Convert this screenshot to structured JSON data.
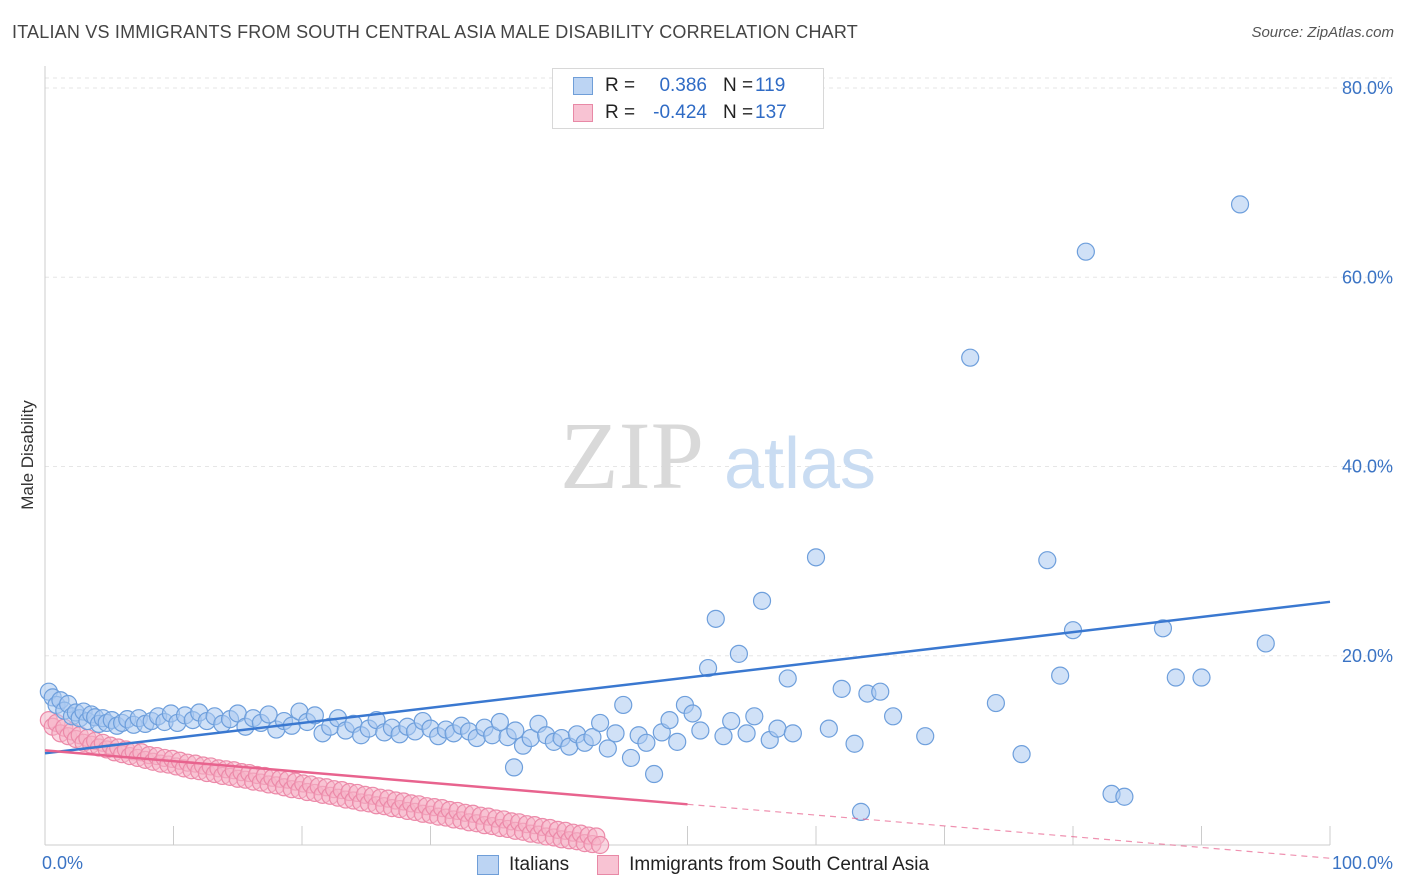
{
  "header": {
    "title": "ITALIAN VS IMMIGRANTS FROM SOUTH CENTRAL ASIA MALE DISABILITY CORRELATION CHART",
    "source": "Source: ZipAtlas.com"
  },
  "watermark": {
    "zip": "ZIP",
    "atlas": "atlas"
  },
  "stats_legend": [
    {
      "r_label": "R =",
      "r_value": "0.386",
      "n_label": "N =",
      "n_value": "119"
    },
    {
      "r_label": "R =",
      "r_value": "-0.424",
      "n_label": "N =",
      "n_value": "137"
    }
  ],
  "colors": {
    "italians_fill": "#a9c8f0",
    "italians_stroke": "#6e9fdc",
    "italians_line": "#3a78d0",
    "immigrants_fill": "#f6b5c8",
    "immigrants_stroke": "#ec8aa9",
    "immigrants_line": "#e8638e",
    "tick_label": "#3a73c4",
    "grid": "#e6e6e6"
  },
  "chart_data": {
    "type": "scatter",
    "title": "ITALIAN VS IMMIGRANTS FROM SOUTH CENTRAL ASIA MALE DISABILITY CORRELATION CHART",
    "xlabel": "",
    "ylabel": "Male Disability",
    "xlim": [
      0,
      100
    ],
    "ylim": [
      0,
      80
    ],
    "x_tick_labels": [
      "0.0%",
      "100.0%"
    ],
    "y_ticks": [
      20,
      40,
      60,
      80
    ],
    "y_tick_labels": [
      "20.0%",
      "40.0%",
      "60.0%",
      "80.0%"
    ],
    "grid": true,
    "legend_position": "bottom-center",
    "series": [
      {
        "name": "Italians",
        "r": 0.386,
        "n": 119,
        "trend": {
          "x": [
            0,
            100
          ],
          "y": [
            9.7,
            25.7
          ]
        },
        "points": [
          [
            0.3,
            16.2
          ],
          [
            0.6,
            15.6
          ],
          [
            0.9,
            14.8
          ],
          [
            1.2,
            15.3
          ],
          [
            1.5,
            14.2
          ],
          [
            1.8,
            14.9
          ],
          [
            2.1,
            13.6
          ],
          [
            2.4,
            14.0
          ],
          [
            2.7,
            13.4
          ],
          [
            3.0,
            14.1
          ],
          [
            3.3,
            13.1
          ],
          [
            3.6,
            13.8
          ],
          [
            3.9,
            13.5
          ],
          [
            4.2,
            12.8
          ],
          [
            4.5,
            13.4
          ],
          [
            4.8,
            12.9
          ],
          [
            5.2,
            13.2
          ],
          [
            5.6,
            12.6
          ],
          [
            6.0,
            12.9
          ],
          [
            6.4,
            13.3
          ],
          [
            6.9,
            12.7
          ],
          [
            7.3,
            13.4
          ],
          [
            7.8,
            12.8
          ],
          [
            8.3,
            13.1
          ],
          [
            8.8,
            13.6
          ],
          [
            9.3,
            13.0
          ],
          [
            9.8,
            13.9
          ],
          [
            10.3,
            12.9
          ],
          [
            10.9,
            13.7
          ],
          [
            11.5,
            13.2
          ],
          [
            12.0,
            14.0
          ],
          [
            12.6,
            13.1
          ],
          [
            13.2,
            13.6
          ],
          [
            13.8,
            12.8
          ],
          [
            14.4,
            13.3
          ],
          [
            15.0,
            13.9
          ],
          [
            15.6,
            12.5
          ],
          [
            16.2,
            13.4
          ],
          [
            16.8,
            12.9
          ],
          [
            17.4,
            13.8
          ],
          [
            18.0,
            12.2
          ],
          [
            18.6,
            13.1
          ],
          [
            19.2,
            12.6
          ],
          [
            19.8,
            14.1
          ],
          [
            20.4,
            13.0
          ],
          [
            21.0,
            13.7
          ],
          [
            21.6,
            11.8
          ],
          [
            22.2,
            12.5
          ],
          [
            22.8,
            13.4
          ],
          [
            23.4,
            12.1
          ],
          [
            24.0,
            12.8
          ],
          [
            24.6,
            11.6
          ],
          [
            25.2,
            12.3
          ],
          [
            25.8,
            13.2
          ],
          [
            26.4,
            11.9
          ],
          [
            27.0,
            12.4
          ],
          [
            27.6,
            11.7
          ],
          [
            28.2,
            12.5
          ],
          [
            28.8,
            12.0
          ],
          [
            29.4,
            13.1
          ],
          [
            30.0,
            12.3
          ],
          [
            30.6,
            11.5
          ],
          [
            31.2,
            12.2
          ],
          [
            31.8,
            11.8
          ],
          [
            32.4,
            12.6
          ],
          [
            33.0,
            12.0
          ],
          [
            33.6,
            11.3
          ],
          [
            34.2,
            12.4
          ],
          [
            34.8,
            11.6
          ],
          [
            35.4,
            13.0
          ],
          [
            36.0,
            11.4
          ],
          [
            36.6,
            12.1
          ],
          [
            37.2,
            10.5
          ],
          [
            37.8,
            11.3
          ],
          [
            38.4,
            12.8
          ],
          [
            39.0,
            11.6
          ],
          [
            39.6,
            10.9
          ],
          [
            40.2,
            11.3
          ],
          [
            40.8,
            10.4
          ],
          [
            41.4,
            11.7
          ],
          [
            42.0,
            10.8
          ],
          [
            42.6,
            11.4
          ],
          [
            43.2,
            12.9
          ],
          [
            43.8,
            10.2
          ],
          [
            44.4,
            11.8
          ],
          [
            45.0,
            14.8
          ],
          [
            45.6,
            9.2
          ],
          [
            46.2,
            11.6
          ],
          [
            46.8,
            10.8
          ],
          [
            47.4,
            7.5
          ],
          [
            48.0,
            11.9
          ],
          [
            48.6,
            13.2
          ],
          [
            49.2,
            10.9
          ],
          [
            49.8,
            14.8
          ],
          [
            50.4,
            13.9
          ],
          [
            51.0,
            12.1
          ],
          [
            51.6,
            18.7
          ],
          [
            52.2,
            23.9
          ],
          [
            52.8,
            11.5
          ],
          [
            53.4,
            13.1
          ],
          [
            54.0,
            20.2
          ],
          [
            54.6,
            11.8
          ],
          [
            55.2,
            13.6
          ],
          [
            55.8,
            25.8
          ],
          [
            56.4,
            11.1
          ],
          [
            57.0,
            12.3
          ],
          [
            57.8,
            17.6
          ],
          [
            58.2,
            11.8
          ],
          [
            60.0,
            30.4
          ],
          [
            61.0,
            12.3
          ],
          [
            62.0,
            16.5
          ],
          [
            63.0,
            10.7
          ],
          [
            64.0,
            16.0
          ],
          [
            65.0,
            16.2
          ],
          [
            66.0,
            13.6
          ],
          [
            68.5,
            11.5
          ],
          [
            72.0,
            51.5
          ],
          [
            74.0,
            15.0
          ],
          [
            76.0,
            9.6
          ],
          [
            78.0,
            30.1
          ],
          [
            79.0,
            17.9
          ],
          [
            80.0,
            22.7
          ],
          [
            83.0,
            5.4
          ],
          [
            84.0,
            5.1
          ],
          [
            87.0,
            22.9
          ],
          [
            88.0,
            17.7
          ],
          [
            90.0,
            17.7
          ],
          [
            93.0,
            67.7
          ],
          [
            95.0,
            21.3
          ],
          [
            81.0,
            62.7
          ],
          [
            63.5,
            3.5
          ],
          [
            36.5,
            8.2
          ]
        ]
      },
      {
        "name": "Immigrants from South Central Asia",
        "r": -0.424,
        "n": 137,
        "trend": {
          "x": [
            0,
            50
          ],
          "y": [
            10.0,
            4.3
          ]
        },
        "trend_dashed": {
          "x": [
            50,
            100
          ],
          "y": [
            4.3,
            -1.4
          ]
        },
        "points": [
          [
            0.3,
            13.2
          ],
          [
            0.6,
            12.5
          ],
          [
            0.9,
            12.9
          ],
          [
            1.2,
            11.8
          ],
          [
            1.5,
            12.4
          ],
          [
            1.8,
            11.5
          ],
          [
            2.1,
            12.0
          ],
          [
            2.4,
            11.2
          ],
          [
            2.7,
            11.6
          ],
          [
            3.0,
            10.8
          ],
          [
            3.3,
            11.3
          ],
          [
            3.6,
            10.6
          ],
          [
            3.9,
            11.0
          ],
          [
            4.2,
            10.3
          ],
          [
            4.5,
            10.8
          ],
          [
            4.8,
            10.1
          ],
          [
            5.1,
            10.5
          ],
          [
            5.4,
            9.8
          ],
          [
            5.7,
            10.3
          ],
          [
            6.0,
            9.6
          ],
          [
            6.3,
            10.1
          ],
          [
            6.6,
            9.4
          ],
          [
            6.9,
            9.9
          ],
          [
            7.2,
            9.2
          ],
          [
            7.5,
            9.8
          ],
          [
            7.8,
            9.0
          ],
          [
            8.1,
            9.5
          ],
          [
            8.4,
            8.8
          ],
          [
            8.7,
            9.4
          ],
          [
            9.0,
            8.6
          ],
          [
            9.3,
            9.2
          ],
          [
            9.6,
            8.5
          ],
          [
            9.9,
            9.1
          ],
          [
            10.2,
            8.3
          ],
          [
            10.5,
            8.9
          ],
          [
            10.8,
            8.1
          ],
          [
            11.1,
            8.7
          ],
          [
            11.4,
            7.9
          ],
          [
            11.7,
            8.6
          ],
          [
            12.0,
            7.8
          ],
          [
            12.3,
            8.4
          ],
          [
            12.6,
            7.6
          ],
          [
            12.9,
            8.3
          ],
          [
            13.2,
            7.5
          ],
          [
            13.5,
            8.1
          ],
          [
            13.8,
            7.3
          ],
          [
            14.1,
            8.0
          ],
          [
            14.4,
            7.2
          ],
          [
            14.7,
            7.9
          ],
          [
            15.0,
            7.0
          ],
          [
            15.3,
            7.7
          ],
          [
            15.6,
            6.9
          ],
          [
            15.9,
            7.6
          ],
          [
            16.2,
            6.7
          ],
          [
            16.5,
            7.4
          ],
          [
            16.8,
            6.6
          ],
          [
            17.1,
            7.3
          ],
          [
            17.4,
            6.4
          ],
          [
            17.7,
            7.1
          ],
          [
            18.0,
            6.3
          ],
          [
            18.3,
            7.0
          ],
          [
            18.6,
            6.1
          ],
          [
            18.9,
            6.9
          ],
          [
            19.2,
            5.9
          ],
          [
            19.5,
            6.7
          ],
          [
            19.8,
            5.8
          ],
          [
            20.1,
            6.5
          ],
          [
            20.4,
            5.6
          ],
          [
            20.7,
            6.4
          ],
          [
            21.0,
            5.5
          ],
          [
            21.3,
            6.2
          ],
          [
            21.6,
            5.3
          ],
          [
            21.9,
            6.1
          ],
          [
            22.2,
            5.2
          ],
          [
            22.5,
            5.9
          ],
          [
            22.8,
            5.0
          ],
          [
            23.1,
            5.8
          ],
          [
            23.4,
            4.8
          ],
          [
            23.7,
            5.6
          ],
          [
            24.0,
            4.7
          ],
          [
            24.3,
            5.5
          ],
          [
            24.6,
            4.5
          ],
          [
            24.9,
            5.3
          ],
          [
            25.2,
            4.4
          ],
          [
            25.5,
            5.2
          ],
          [
            25.8,
            4.2
          ],
          [
            26.1,
            5.0
          ],
          [
            26.4,
            4.1
          ],
          [
            26.7,
            4.9
          ],
          [
            27.0,
            3.9
          ],
          [
            27.3,
            4.7
          ],
          [
            27.6,
            3.8
          ],
          [
            27.9,
            4.6
          ],
          [
            28.2,
            3.6
          ],
          [
            28.5,
            4.4
          ],
          [
            28.8,
            3.5
          ],
          [
            29.1,
            4.3
          ],
          [
            29.4,
            3.3
          ],
          [
            29.7,
            4.1
          ],
          [
            30.0,
            3.2
          ],
          [
            30.3,
            4.0
          ],
          [
            30.6,
            3.0
          ],
          [
            30.9,
            3.9
          ],
          [
            31.2,
            2.9
          ],
          [
            31.5,
            3.7
          ],
          [
            31.8,
            2.7
          ],
          [
            32.1,
            3.6
          ],
          [
            32.4,
            2.6
          ],
          [
            32.7,
            3.4
          ],
          [
            33.0,
            2.4
          ],
          [
            33.3,
            3.3
          ],
          [
            33.6,
            2.3
          ],
          [
            33.9,
            3.1
          ],
          [
            34.2,
            2.1
          ],
          [
            34.5,
            3.0
          ],
          [
            34.8,
            2.0
          ],
          [
            35.1,
            2.8
          ],
          [
            35.4,
            1.8
          ],
          [
            35.7,
            2.7
          ],
          [
            36.0,
            1.7
          ],
          [
            36.3,
            2.5
          ],
          [
            36.6,
            1.5
          ],
          [
            36.9,
            2.4
          ],
          [
            37.2,
            1.4
          ],
          [
            37.5,
            2.2
          ],
          [
            37.8,
            1.2
          ],
          [
            38.1,
            2.1
          ],
          [
            38.4,
            1.1
          ],
          [
            38.7,
            1.9
          ],
          [
            39.0,
            0.9
          ],
          [
            39.3,
            1.8
          ],
          [
            39.6,
            0.8
          ],
          [
            39.9,
            1.6
          ],
          [
            40.2,
            0.6
          ],
          [
            40.5,
            1.5
          ],
          [
            40.8,
            0.5
          ],
          [
            41.1,
            1.3
          ],
          [
            41.4,
            0.4
          ],
          [
            41.7,
            1.2
          ],
          [
            42.0,
            0.2
          ],
          [
            42.3,
            1.0
          ],
          [
            42.6,
            0.1
          ],
          [
            42.9,
            0.9
          ],
          [
            43.2,
            0.0
          ]
        ]
      }
    ]
  },
  "bottom_legend": [
    {
      "label": "Italians"
    },
    {
      "label": "Immigrants from South Central Asia"
    }
  ]
}
